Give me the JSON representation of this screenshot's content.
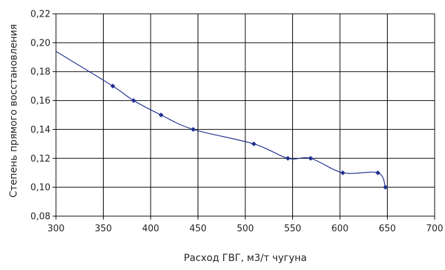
{
  "chart_data": {
    "type": "line",
    "title": "",
    "xlabel": "Расход ГВГ, м3/т чугуна",
    "ylabel": "Степень прямого восстановления",
    "xlim": [
      300,
      700
    ],
    "ylim": [
      0.08,
      0.22
    ],
    "x_ticks": [
      300,
      350,
      400,
      450,
      500,
      550,
      600,
      650,
      700
    ],
    "y_ticks": [
      "0,08",
      "0,10",
      "0,12",
      "0,14",
      "0,16",
      "0,18",
      "0,20",
      "0,22"
    ],
    "grid": true,
    "line_start": {
      "x": 300,
      "y": 0.194
    },
    "series": [
      {
        "color": "#1f2f8f",
        "points": [
          {
            "x": 360,
            "y": 0.17
          },
          {
            "x": 382,
            "y": 0.16
          },
          {
            "x": 411,
            "y": 0.15
          },
          {
            "x": 445,
            "y": 0.14
          },
          {
            "x": 509,
            "y": 0.13
          },
          {
            "x": 545,
            "y": 0.12
          },
          {
            "x": 569,
            "y": 0.12
          },
          {
            "x": 603,
            "y": 0.11
          },
          {
            "x": 640,
            "y": 0.11
          },
          {
            "x": 648,
            "y": 0.1
          }
        ]
      }
    ]
  }
}
